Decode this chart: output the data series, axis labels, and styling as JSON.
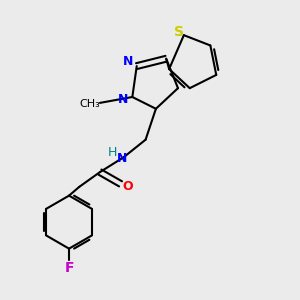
{
  "background_color": "#ebebeb",
  "bond_color": "#000000",
  "N_color": "#0000ff",
  "O_color": "#ff0000",
  "S_color": "#cccc00",
  "F_color": "#cc00cc",
  "H_color": "#008080",
  "figsize": [
    3.0,
    3.0
  ],
  "dpi": 100,
  "xlim": [
    0,
    10
  ],
  "ylim": [
    0,
    10
  ]
}
